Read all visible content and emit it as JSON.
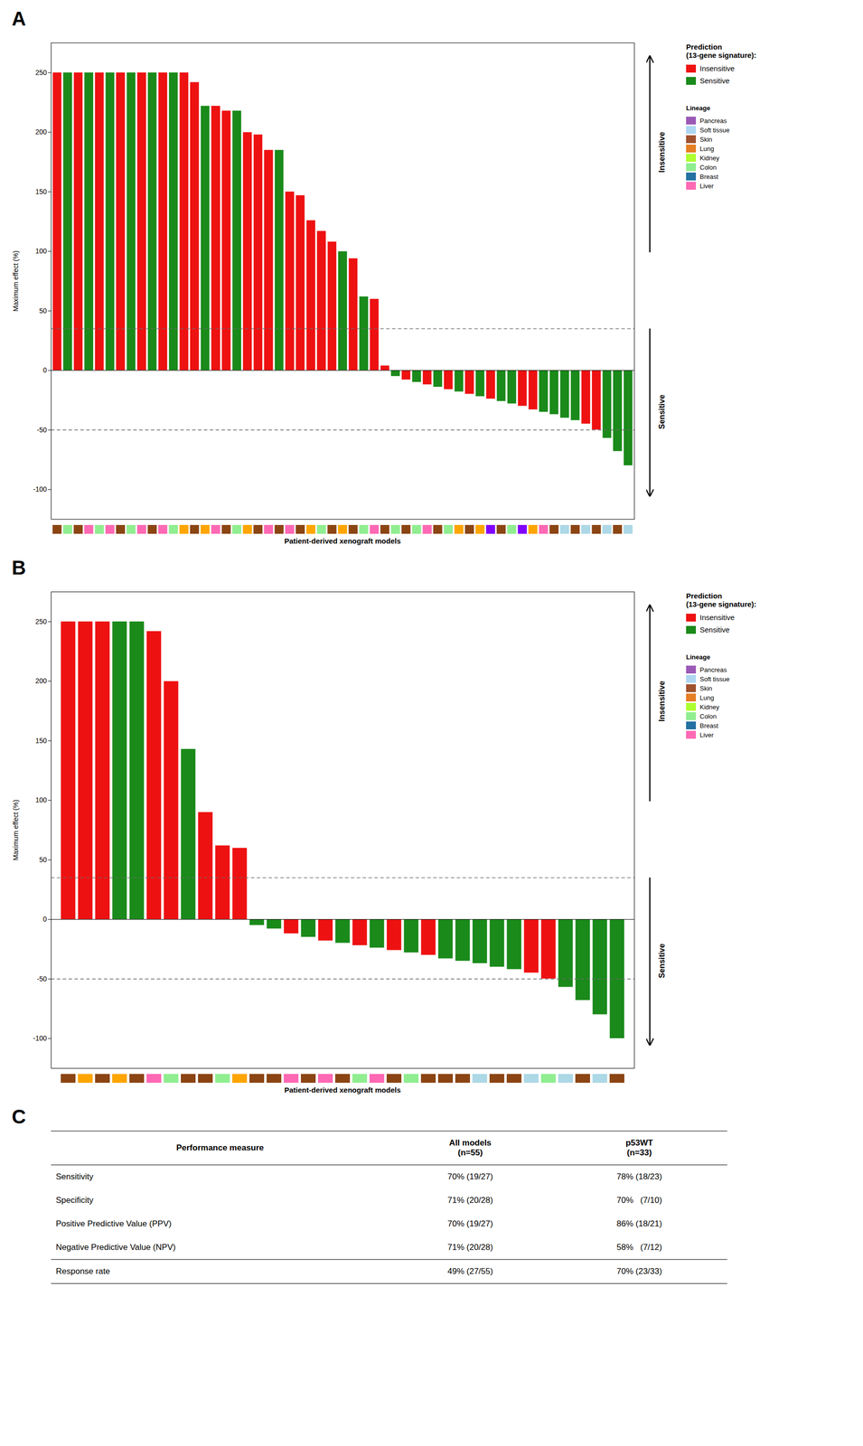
{
  "chart_data": [
    {
      "type": "bar",
      "title": "A",
      "xlabel": "Patient-derived xenograft models",
      "ylabel": "Maximum effect (%)",
      "values": [
        250,
        250,
        250,
        250,
        250,
        250,
        250,
        250,
        250,
        250,
        250,
        250,
        250,
        242,
        222,
        222,
        218,
        218,
        200,
        198,
        185,
        185,
        150,
        147,
        126,
        117,
        108,
        100,
        94,
        62,
        60,
        4,
        -5,
        -8,
        -10,
        -12,
        -14,
        -16,
        -18,
        -20,
        -22,
        -24,
        -26,
        -28,
        -30,
        -33,
        -35,
        -37,
        -40,
        -42,
        -45,
        -50,
        -57,
        -68,
        -80
      ],
      "colors": [
        "#EE1111",
        "#1A8A1A",
        "#EE1111",
        "#1A8A1A",
        "#EE1111",
        "#1A8A1A",
        "#EE1111",
        "#1A8A1A",
        "#EE1111",
        "#1A8A1A",
        "#EE1111",
        "#1A8A1A",
        "#EE1111",
        "#EE1111",
        "#1A8A1A",
        "#EE1111",
        "#EE1111",
        "#1A8A1A",
        "#EE1111",
        "#EE1111",
        "#EE1111",
        "#1A8A1A",
        "#EE1111",
        "#EE1111",
        "#EE1111",
        "#EE1111",
        "#EE1111",
        "#1A8A1A",
        "#EE1111",
        "#1A8A1A",
        "#EE1111",
        "#EE1111",
        "#1A8A1A",
        "#EE1111",
        "#1A8A1A",
        "#EE1111",
        "#1A8A1A",
        "#EE1111",
        "#1A8A1A",
        "#EE1111",
        "#1A8A1A",
        "#EE1111",
        "#1A8A1A",
        "#1A8A1A",
        "#EE1111",
        "#EE1111",
        "#1A8A1A",
        "#1A8A1A",
        "#1A8A1A",
        "#1A8A1A",
        "#EE1111",
        "#EE1111",
        "#1A8A1A",
        "#1A8A1A",
        "#1A8A1A"
      ],
      "lineage_colors": [
        "#8B4513",
        "#90EE90",
        "#8B4513",
        "#FF69B4",
        "#90EE90",
        "#FF69B4",
        "#8B4513",
        "#90EE90",
        "#FF69B4",
        "#8B4513",
        "#FF69B4",
        "#90EE90",
        "#FFA500",
        "#8B4513",
        "#FFA500",
        "#FF69B4",
        "#8B4513",
        "#90EE90",
        "#FFA500",
        "#8B4513",
        "#FF69B4",
        "#8B4513",
        "#FF69B4",
        "#8B4513",
        "#FFA500",
        "#90EE90",
        "#8B4513",
        "#FFA500",
        "#8B4513",
        "#90EE90",
        "#FF69B4",
        "#8B4513",
        "#90EE90",
        "#8B4513",
        "#90EE90",
        "#FF69B4",
        "#8B4513",
        "#90EE90",
        "#FFA500",
        "#8B4513",
        "#FFA500",
        "#8000FF",
        "#8B4513",
        "#90EE90",
        "#8000FF",
        "#FFA500",
        "#FF69B4",
        "#8B4513",
        "#ADD8E6",
        "#8B4513",
        "#ADD8E6",
        "#8B4513",
        "#ADD8E6",
        "#8B4513",
        "#ADD8E6"
      ],
      "ylim": [
        -125,
        275
      ],
      "yticks": [
        -100,
        -50,
        0,
        50,
        100,
        150,
        200,
        250
      ],
      "reference_lines": [
        35,
        -50
      ],
      "annotations": [
        "Insensitive",
        "Sensitive"
      ],
      "legend_groups": [
        {
          "title": "Prediction\n(13-gene signature):",
          "entries": [
            {
              "name": "Insensitive",
              "color": "#EE1111"
            },
            {
              "name": "Sensitive",
              "color": "#1A8A1A"
            }
          ]
        },
        {
          "title": "Lineage",
          "entries": [
            {
              "name": "Pancreas",
              "color": "#9B59B6"
            },
            {
              "name": "Soft tissue",
              "color": "#AED6F1"
            },
            {
              "name": "Skin",
              "color": "#A0522D"
            },
            {
              "name": "Lung",
              "color": "#E67E22"
            },
            {
              "name": "Kidney",
              "color": "#ADFF2F"
            },
            {
              "name": "Colon",
              "color": "#90EE90"
            },
            {
              "name": "Breast",
              "color": "#2471A3"
            },
            {
              "name": "Liver",
              "color": "#FF69B4"
            }
          ]
        }
      ],
      "tick_labels": "y",
      "grid": false
    },
    {
      "type": "bar",
      "title": "B",
      "xlabel": "Patient-derived xenograft models",
      "ylabel": "Maximum effect (%)",
      "values": [
        250,
        250,
        250,
        250,
        250,
        242,
        200,
        143,
        90,
        62,
        60,
        -5,
        -8,
        -12,
        -15,
        -18,
        -20,
        -22,
        -24,
        -26,
        -28,
        -30,
        -33,
        -35,
        -37,
        -40,
        -42,
        -45,
        -50,
        -57,
        -68,
        -80,
        -100
      ],
      "colors": [
        "#EE1111",
        "#EE1111",
        "#EE1111",
        "#1A8A1A",
        "#1A8A1A",
        "#EE1111",
        "#EE1111",
        "#1A8A1A",
        "#EE1111",
        "#EE1111",
        "#EE1111",
        "#1A8A1A",
        "#1A8A1A",
        "#EE1111",
        "#1A8A1A",
        "#EE1111",
        "#1A8A1A",
        "#EE1111",
        "#1A8A1A",
        "#EE1111",
        "#1A8A1A",
        "#EE1111",
        "#1A8A1A",
        "#1A8A1A",
        "#1A8A1A",
        "#1A8A1A",
        "#1A8A1A",
        "#EE1111",
        "#EE1111",
        "#1A8A1A",
        "#1A8A1A",
        "#1A8A1A",
        "#1A8A1A"
      ],
      "lineage_colors": [
        "#8B4513",
        "#FFA500",
        "#8B4513",
        "#FFA500",
        "#8B4513",
        "#FF69B4",
        "#90EE90",
        "#8B4513",
        "#8B4513",
        "#90EE90",
        "#FFA500",
        "#8B4513",
        "#8B4513",
        "#FF69B4",
        "#8B4513",
        "#FF69B4",
        "#8B4513",
        "#90EE90",
        "#FF69B4",
        "#8B4513",
        "#90EE90",
        "#8B4513",
        "#8B4513",
        "#8B4513",
        "#ADD8E6",
        "#8B4513",
        "#8B4513",
        "#ADD8E6",
        "#90EE90",
        "#ADD8E6",
        "#8B4513",
        "#ADD8E6",
        "#8B4513"
      ],
      "ylim": [
        -125,
        275
      ],
      "yticks": [
        -100,
        -50,
        0,
        50,
        100,
        150,
        200,
        250
      ],
      "reference_lines": [
        35,
        -50
      ],
      "annotations": [
        "Insensitive",
        "Sensitive"
      ],
      "legend_groups": [
        {
          "title": "Prediction\n(13-gene signature):",
          "entries": [
            {
              "name": "Insensitive",
              "color": "#EE1111"
            },
            {
              "name": "Sensitive",
              "color": "#1A8A1A"
            }
          ]
        },
        {
          "title": "Lineage",
          "entries": [
            {
              "name": "Pancreas",
              "color": "#9B59B6"
            },
            {
              "name": "Soft tissue",
              "color": "#AED6F1"
            },
            {
              "name": "Skin",
              "color": "#A0522D"
            },
            {
              "name": "Lung",
              "color": "#E67E22"
            },
            {
              "name": "Kidney",
              "color": "#ADFF2F"
            },
            {
              "name": "Colon",
              "color": "#90EE90"
            },
            {
              "name": "Breast",
              "color": "#2471A3"
            },
            {
              "name": "Liver",
              "color": "#FF69B4"
            }
          ]
        }
      ],
      "tick_labels": "y",
      "grid": false
    },
    {
      "type": "table",
      "title": "C",
      "columns": [
        "Performance measure",
        "All models\n(n=55)",
        "p53WT\n(n=33)"
      ],
      "rows": [
        [
          "Sensitivity",
          "70% (19/27)",
          "78% (18/23)"
        ],
        [
          "Specificity",
          "71% (20/28)",
          "70%   (7/10)"
        ],
        [
          "Positive Predictive Value (PPV)",
          "70% (19/27)",
          "86% (18/21)"
        ],
        [
          "Negative Predictive Value (NPV)",
          "71% (20/28)",
          "58%   (7/12)"
        ],
        [
          "Response rate",
          "49% (27/55)",
          "70% (23/33)"
        ]
      ]
    }
  ]
}
